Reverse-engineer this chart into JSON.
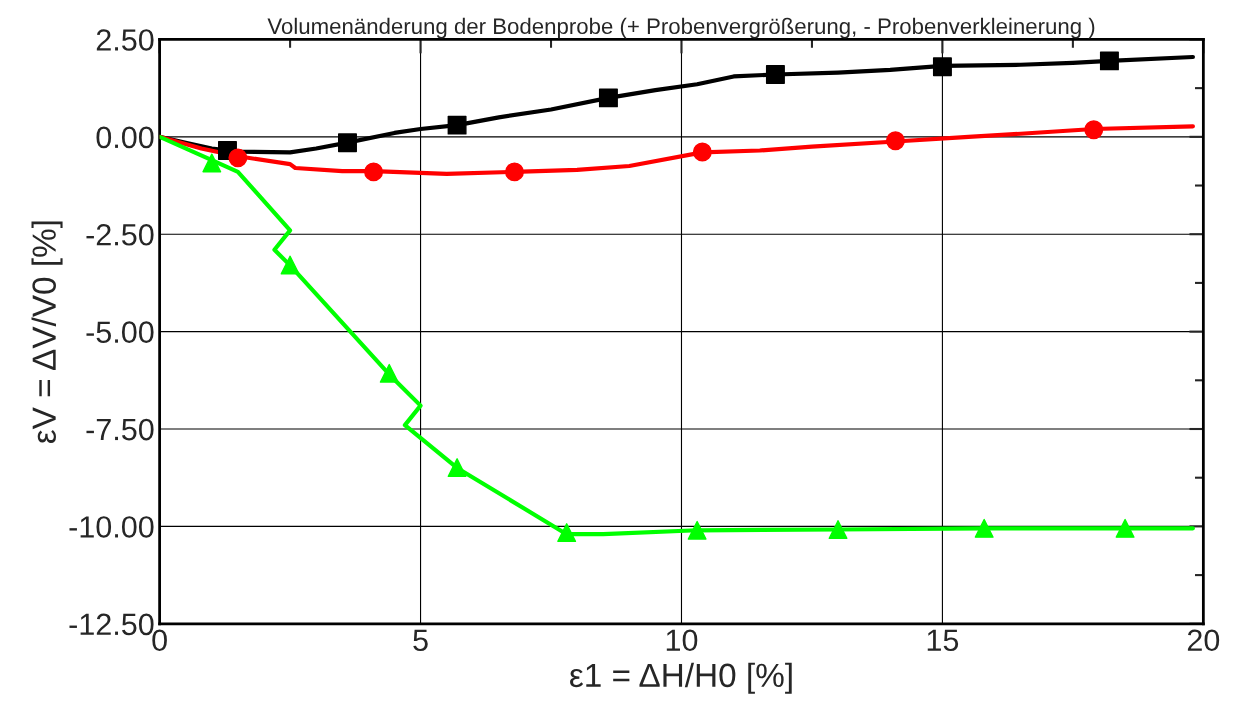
{
  "chart_data": {
    "type": "line",
    "title": "Volumenänderung der Bodenprobe (+ Probenvergrößerung, - Probenverkleinerung )",
    "xlabel": "ε1 = ΔH/H0 [%]",
    "ylabel": "εV = ΔV/V0 [%]",
    "xlim": [
      0,
      20
    ],
    "xticks": [
      0,
      5,
      10,
      15,
      20
    ],
    "ylim": [
      -12.5,
      2.5
    ],
    "yticks": [
      {
        "value": -12.5,
        "label": "-12.50"
      },
      {
        "value": -10,
        "label": "-10.00"
      },
      {
        "value": -7.5,
        "label": "-7.50"
      },
      {
        "value": -5,
        "label": "-5.00"
      },
      {
        "value": -2.5,
        "label": "-2.50"
      },
      {
        "value": 0,
        "label": "0.00"
      },
      {
        "value": 2.5,
        "label": "2.50"
      }
    ],
    "grid": true,
    "legend": false,
    "series": [
      {
        "color": "#000000",
        "marker": "none",
        "x": [
          0,
          0.5,
          1,
          1.5,
          2.5,
          3,
          3.6,
          4.5,
          5,
          5.7,
          6.5,
          7.5,
          8.6,
          9.5,
          10.3,
          11,
          11.8,
          13,
          14,
          15,
          16.5,
          17.5,
          18.2,
          19.8
        ],
        "values": [
          0,
          -0.15,
          -0.3,
          -0.38,
          -0.4,
          -0.3,
          -0.15,
          0.1,
          0.2,
          0.3,
          0.5,
          0.7,
          1.0,
          1.2,
          1.35,
          1.55,
          1.6,
          1.65,
          1.72,
          1.82,
          1.85,
          1.9,
          1.95,
          2.05
        ]
      },
      {
        "type": "scatter",
        "color": "#000000",
        "marker": "square",
        "x": [
          1.3,
          3.6,
          5.7,
          8.6,
          11.8,
          15,
          18.2
        ],
        "values": [
          -0.35,
          -0.15,
          0.3,
          1.0,
          1.6,
          1.8,
          1.95
        ]
      },
      {
        "color": "#ff0000",
        "marker": "none",
        "x": [
          0,
          0.8,
          1.5,
          2.5,
          2.6,
          3.5,
          4.1,
          5.5,
          6.8,
          8,
          9,
          10.4,
          11.5,
          12.5,
          14.1,
          15.5,
          16.5,
          17.9,
          19.8
        ],
        "values": [
          0,
          -0.3,
          -0.5,
          -0.7,
          -0.8,
          -0.88,
          -0.88,
          -0.95,
          -0.9,
          -0.85,
          -0.75,
          -0.4,
          -0.35,
          -0.25,
          -0.12,
          0,
          0.08,
          0.2,
          0.27
        ]
      },
      {
        "type": "scatter",
        "color": "#ff0000",
        "marker": "circle",
        "x": [
          1.5,
          4.1,
          6.8,
          10.4,
          14.1,
          17.9
        ],
        "values": [
          -0.54,
          -0.9,
          -0.9,
          -0.39,
          -0.1,
          0.18
        ]
      },
      {
        "color": "#00ff00",
        "marker": "none",
        "x": [
          0,
          1,
          1.5,
          2.5,
          2.2,
          2.5,
          4.4,
          5,
          4.7,
          5.7,
          7.8,
          8.5,
          10.3,
          13,
          15.8,
          18.5,
          19.8
        ],
        "values": [
          0,
          -0.6,
          -0.9,
          -2.4,
          -2.9,
          -3.3,
          -6.1,
          -6.9,
          -7.4,
          -8.5,
          -10.2,
          -10.2,
          -10.1,
          -10.08,
          -10.05,
          -10.05,
          -10.05
        ]
      },
      {
        "type": "scatter",
        "color": "#00ff00",
        "marker": "triangle",
        "x": [
          1,
          2.5,
          4.4,
          5.7,
          7.8,
          10.3,
          13,
          15.8,
          18.5
        ],
        "values": [
          -0.67,
          -3.29,
          -6.07,
          -8.49,
          -10.16,
          -10.1,
          -10.08,
          -10.05,
          -10.05
        ]
      }
    ]
  }
}
